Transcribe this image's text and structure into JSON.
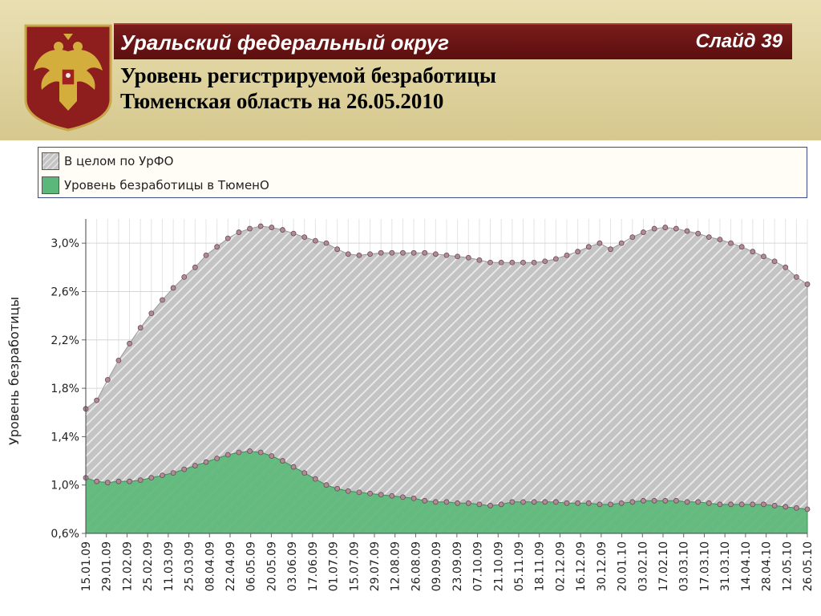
{
  "header": {
    "region_title": "Уральский федеральный округ",
    "slide_label": "Слайд 39",
    "subtitle_line1": "Уровень регистрируемой безработицы",
    "subtitle_line2": "Тюменская область на 26.05.2010"
  },
  "colors": {
    "banner": "#6b1616",
    "urfo_fill": "#c9c9c9",
    "tyumen_fill": "#5cb87a",
    "marker": "#a87a86"
  },
  "chart_data": {
    "type": "area",
    "ylabel": "Уровень безработицы",
    "ylim": [
      0.6,
      3.2
    ],
    "yticks": [
      "0,6%",
      "1,0%",
      "1,4%",
      "1,8%",
      "2,2%",
      "2,6%",
      "3,0%"
    ],
    "ytick_values": [
      0.6,
      1.0,
      1.4,
      1.8,
      2.2,
      2.6,
      3.0
    ],
    "xticks": [
      "15.01.09",
      "29.01.09",
      "12.02.09",
      "25.02.09",
      "11.03.09",
      "25.03.09",
      "08.04.09",
      "22.04.09",
      "06.05.09",
      "20.05.09",
      "03.06.09",
      "17.06.09",
      "01.07.09",
      "15.07.09",
      "29.07.09",
      "12.08.09",
      "26.08.09",
      "09.09.09",
      "23.09.09",
      "07.10.09",
      "21.10.09",
      "05.11.09",
      "18.11.09",
      "02.12.09",
      "16.12.09",
      "30.12.09",
      "20.01.10",
      "03.02.10",
      "17.02.10",
      "03.03.10",
      "17.03.10",
      "31.03.10",
      "14.04.10",
      "28.04.10",
      "12.05.10",
      "26.05.10"
    ],
    "grid": true,
    "legend_position": "top",
    "series": [
      {
        "name": "В целом по УрФО",
        "values": [
          1.63,
          1.7,
          1.87,
          2.03,
          2.17,
          2.3,
          2.42,
          2.53,
          2.63,
          2.72,
          2.8,
          2.9,
          2.97,
          3.04,
          3.09,
          3.12,
          3.14,
          3.13,
          3.11,
          3.08,
          3.05,
          3.02,
          3.0,
          2.95,
          2.91,
          2.9,
          2.91,
          2.92,
          2.92,
          2.92,
          2.92,
          2.92,
          2.91,
          2.9,
          2.89,
          2.88,
          2.86,
          2.84,
          2.84,
          2.84,
          2.84,
          2.84,
          2.85,
          2.87,
          2.9,
          2.93,
          2.97,
          3.0,
          2.95,
          3.0,
          3.05,
          3.09,
          3.12,
          3.13,
          3.12,
          3.1,
          3.08,
          3.05,
          3.03,
          3.0,
          2.97,
          2.93,
          2.89,
          2.85,
          2.8,
          2.72,
          2.66
        ]
      },
      {
        "name": "Уровень безработицы в ТюменО",
        "values": [
          1.06,
          1.03,
          1.02,
          1.03,
          1.03,
          1.04,
          1.06,
          1.08,
          1.1,
          1.13,
          1.16,
          1.19,
          1.22,
          1.25,
          1.27,
          1.28,
          1.27,
          1.24,
          1.2,
          1.15,
          1.1,
          1.05,
          1.0,
          0.97,
          0.95,
          0.94,
          0.93,
          0.92,
          0.91,
          0.9,
          0.89,
          0.87,
          0.86,
          0.86,
          0.85,
          0.85,
          0.84,
          0.83,
          0.84,
          0.86,
          0.86,
          0.86,
          0.86,
          0.86,
          0.85,
          0.85,
          0.85,
          0.84,
          0.84,
          0.85,
          0.86,
          0.87,
          0.87,
          0.87,
          0.87,
          0.86,
          0.86,
          0.85,
          0.84,
          0.84,
          0.84,
          0.84,
          0.84,
          0.83,
          0.82,
          0.81,
          0.8
        ]
      }
    ]
  }
}
